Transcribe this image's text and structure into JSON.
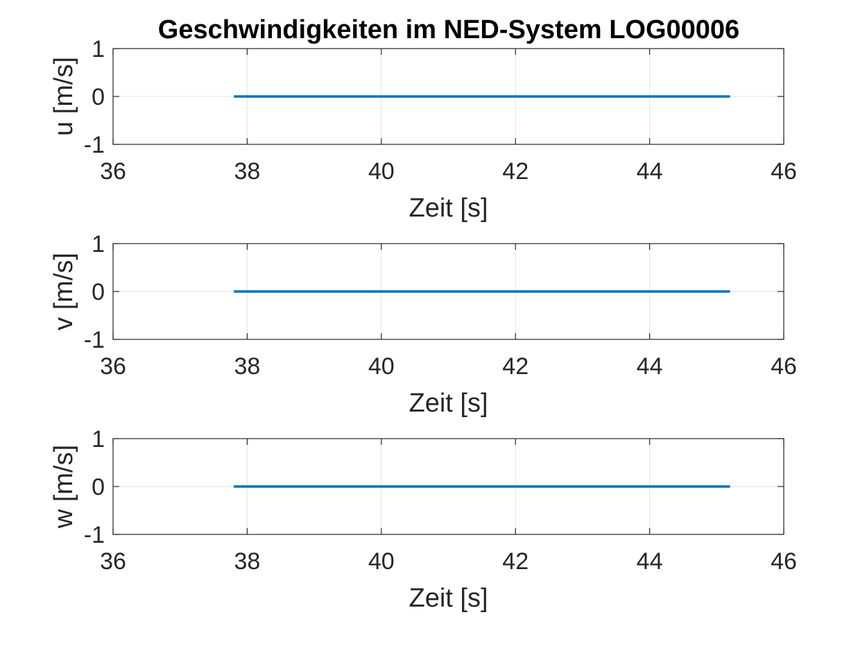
{
  "figure": {
    "title": "Geschwindigkeiten im NED-System LOG00006"
  },
  "chart_data": [
    {
      "type": "line",
      "title": "Geschwindigkeiten im NED-System LOG00006",
      "xlabel": "Zeit [s]",
      "ylabel": "u [m/s]",
      "xlim": [
        36,
        46
      ],
      "ylim": [
        -1,
        1
      ],
      "xticks": [
        "36",
        "38",
        "40",
        "42",
        "44",
        "46"
      ],
      "yticks": [
        "-1",
        "0",
        "1"
      ],
      "grid": true,
      "series": [
        {
          "x": [
            37.8,
            45.2
          ],
          "y": [
            0,
            0
          ],
          "color": "#0072BD"
        }
      ]
    },
    {
      "type": "line",
      "xlabel": "Zeit [s]",
      "ylabel": "v [m/s]",
      "xlim": [
        36,
        46
      ],
      "ylim": [
        -1,
        1
      ],
      "xticks": [
        "36",
        "38",
        "40",
        "42",
        "44",
        "46"
      ],
      "yticks": [
        "-1",
        "0",
        "1"
      ],
      "grid": true,
      "series": [
        {
          "x": [
            37.8,
            45.2
          ],
          "y": [
            0,
            0
          ],
          "color": "#0072BD"
        }
      ]
    },
    {
      "type": "line",
      "xlabel": "Zeit [s]",
      "ylabel": "w [m/s]",
      "xlim": [
        36,
        46
      ],
      "ylim": [
        -1,
        1
      ],
      "xticks": [
        "36",
        "38",
        "40",
        "42",
        "44",
        "46"
      ],
      "yticks": [
        "-1",
        "0",
        "1"
      ],
      "grid": true,
      "series": [
        {
          "x": [
            37.8,
            45.2
          ],
          "y": [
            0,
            0
          ],
          "color": "#0072BD"
        }
      ]
    }
  ]
}
